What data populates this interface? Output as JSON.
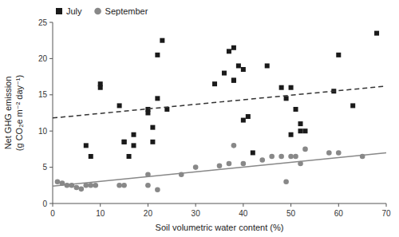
{
  "chart_data": {
    "type": "scatter",
    "xlabel": "Soil volumetric water content (%)",
    "ylabel": "Net GHG emission\n(g CO₂e m⁻² day⁻¹)",
    "xlim": [
      0,
      70
    ],
    "ylim": [
      0,
      25
    ],
    "xticks": [
      0,
      10,
      20,
      30,
      40,
      50,
      60,
      70
    ],
    "yticks": [
      0,
      5,
      10,
      15,
      20,
      25
    ],
    "grid": false,
    "legend": "upper left",
    "series": [
      {
        "name": "July",
        "type": "scatter",
        "marker": "square",
        "color": "#1a1a1a",
        "x": [
          7,
          8,
          10,
          10,
          14,
          15,
          15,
          16,
          17,
          17,
          20,
          20,
          21,
          21,
          22,
          22,
          23,
          24,
          34,
          36,
          37,
          38,
          38,
          38,
          39,
          40,
          40,
          41,
          42,
          45,
          48,
          49,
          50,
          50,
          51,
          52,
          52,
          53,
          59,
          60,
          63,
          68
        ],
        "values": [
          8,
          6.5,
          16.5,
          16,
          13.5,
          8.5,
          8.5,
          6.5,
          9.5,
          8,
          13,
          12.5,
          10.5,
          8.5,
          20.5,
          14.5,
          22.5,
          13,
          16.5,
          18,
          21,
          21.5,
          17,
          17,
          19,
          18.5,
          11.5,
          12,
          7,
          19,
          16,
          14.5,
          9.5,
          16,
          13,
          11,
          10,
          10,
          15.5,
          20.5,
          13.5,
          23.5
        ]
      },
      {
        "name": "September",
        "type": "scatter",
        "marker": "circle",
        "color": "#888888",
        "x": [
          1,
          2,
          3,
          4,
          5,
          6,
          7,
          8,
          9,
          14,
          15,
          20,
          20,
          22,
          27,
          30,
          35,
          37,
          38,
          40,
          44,
          46,
          48,
          49,
          50,
          51,
          52,
          53,
          58,
          60,
          65
        ],
        "values": [
          3,
          2.8,
          2.5,
          2.5,
          2.2,
          2,
          2.5,
          2.5,
          2.5,
          2.5,
          2.5,
          4,
          2.5,
          1.9,
          4,
          5,
          5.2,
          5.5,
          8,
          5.5,
          6,
          6.5,
          6.5,
          3,
          6.5,
          6.5,
          5.5,
          7.5,
          7,
          7,
          6.5
        ]
      },
      {
        "type": "line",
        "line_style": "dashed",
        "color": "#333333",
        "x": [
          0,
          70
        ],
        "values": [
          11.8,
          16.2
        ]
      },
      {
        "type": "line",
        "line_style": "solid",
        "color": "#888888",
        "x": [
          0,
          70
        ],
        "values": [
          2.4,
          7.0
        ]
      }
    ]
  }
}
